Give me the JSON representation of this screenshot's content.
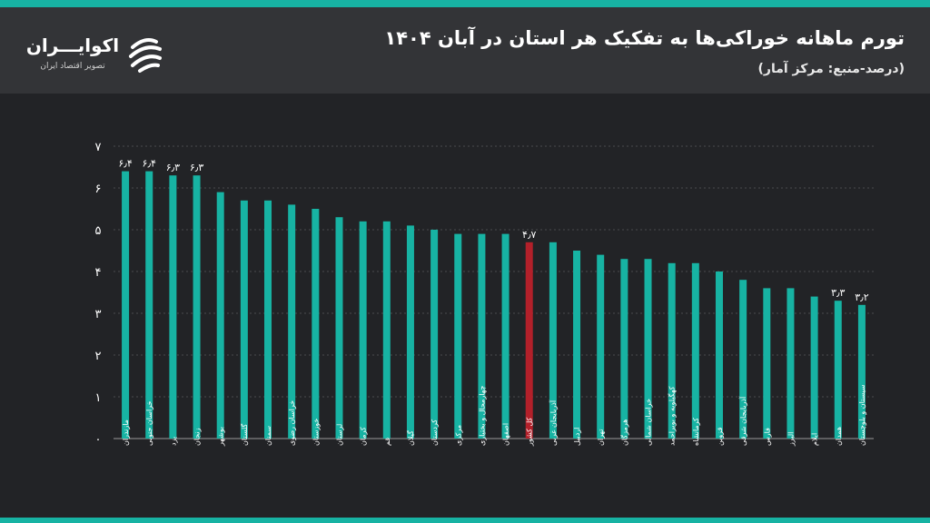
{
  "header": {
    "title": "تورم ماهانه خوراکی‌ها به تفکیک هر استان در آبان ۱۴۰۴",
    "subtitle": "(درصد-منبع: مرکز آمار)"
  },
  "logo": {
    "name": "اکوایـــران",
    "tagline": "تصویر اقتصاد ایران",
    "icon": "ecoiran-logo-icon"
  },
  "colors": {
    "bar": "#17b3a3",
    "highlight": "#b3202a",
    "background": "#222326",
    "header": "#333437",
    "accent": "#17b3a3"
  },
  "chart_data": {
    "type": "bar",
    "categories": [
      "مازندران",
      "خراسان جنوبی",
      "یزد",
      "زنجان",
      "بوشهر",
      "گلستان",
      "سمنان",
      "خراسان رضوی",
      "خوزستان",
      "لرستان",
      "کرمان",
      "قم",
      "گیلان",
      "کردستان",
      "مرکزی",
      "چهارمحال و بختیاری",
      "اصفهان",
      "کل کشور",
      "آذربایجان غربی",
      "اردبیل",
      "تهران",
      "هرمزگان",
      "خراسان شمالی",
      "کهگیلویه و بویراحمد",
      "کرمانشاه",
      "قزوین",
      "آذربایجان شرقی",
      "فارس",
      "البرز",
      "ایلام",
      "همدان",
      "سیستان و بلوچستان"
    ],
    "values": [
      6.4,
      6.4,
      6.3,
      6.3,
      5.9,
      5.7,
      5.7,
      5.6,
      5.5,
      5.3,
      5.2,
      5.2,
      5.1,
      5.0,
      4.9,
      4.9,
      4.9,
      4.7,
      4.7,
      4.5,
      4.4,
      4.3,
      4.3,
      4.2,
      4.2,
      4.0,
      3.8,
      3.6,
      3.6,
      3.4,
      3.3,
      3.2
    ],
    "highlight_index": 17,
    "data_labels": [
      {
        "index": 0,
        "text": "۶٫۴"
      },
      {
        "index": 1,
        "text": "۶٫۴"
      },
      {
        "index": 2,
        "text": "۶٫۳"
      },
      {
        "index": 3,
        "text": "۶٫۳"
      },
      {
        "index": 17,
        "text": "۴٫۷"
      },
      {
        "index": 30,
        "text": "۳٫۳"
      },
      {
        "index": 31,
        "text": "۳٫۲"
      }
    ],
    "ylim": [
      0,
      7
    ],
    "yticks": [
      0,
      1,
      2,
      3,
      4,
      5,
      6,
      7
    ],
    "ytick_labels": [
      "۰",
      "۱",
      "۲",
      "۳",
      "۴",
      "۵",
      "۶",
      "۷"
    ],
    "grid": true
  }
}
